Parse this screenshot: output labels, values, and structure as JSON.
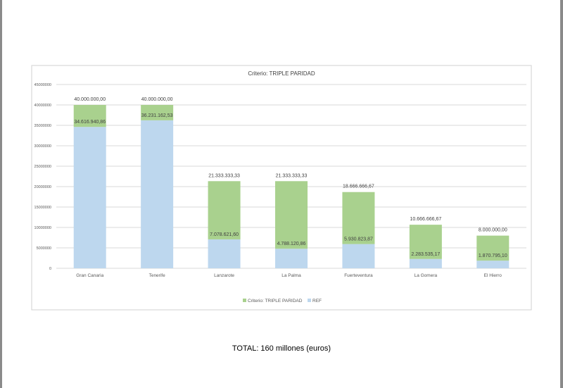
{
  "chart_data": {
    "type": "bar",
    "stacked": true,
    "title": "Criterio: TRIPLE PARIDAD",
    "categories": [
      "Gran Canaria",
      "Tenerife",
      "Lanzarote",
      "La Palma",
      "Fuerteventura",
      "La Gomera",
      "El Hierro"
    ],
    "series": [
      {
        "name": "REF",
        "color": "#bdd7ee",
        "values": [
          34616940.86,
          36231162.53,
          7078621.6,
          4788120.86,
          5930823.87,
          2283535.17,
          1870795.1
        ],
        "labels": [
          "34.616.940,86",
          "36.231.162,53",
          "7.078.621,60",
          "4.788.120,86",
          "5.930.823,87",
          "2.283.535,17",
          "1.870.795,10"
        ]
      },
      {
        "name": "Criterio: TRIPLE PARIDAD",
        "color": "#a9d18e",
        "values": [
          5383059.14,
          3768837.47,
          14254711.73,
          16545212.47,
          12735842.8,
          8383131.5,
          6129204.9
        ]
      }
    ],
    "totals": [
      40000000,
      40000000,
      21333333.33,
      21333333.33,
      18666666.67,
      10666666.67,
      8000000
    ],
    "total_labels": [
      "40.000.000,00",
      "40.000.000,00",
      "21.333.333,33",
      "21.333.333,33",
      "18.666.666,67",
      "10.666.666,67",
      "8.000.000,00"
    ],
    "yticks": [
      "0",
      "5000000",
      "10000000",
      "15000000",
      "20000000",
      "25000000",
      "30000000",
      "35000000",
      "40000000",
      "45000000"
    ],
    "ylim": [
      0,
      45000000
    ],
    "grid": true,
    "legend": "bottom",
    "legend_order": [
      "Criterio: TRIPLE PARIDAD",
      "REF"
    ]
  },
  "footer": {
    "total": "TOTAL: 160 millones (euros)"
  }
}
